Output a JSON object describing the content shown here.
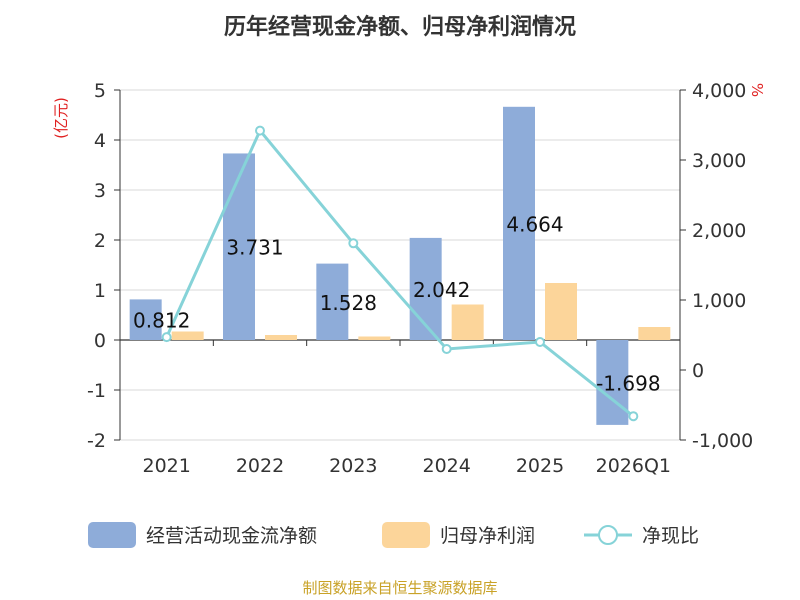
{
  "chart_data": {
    "type": "bar",
    "title": "历年经营现金净额、归母净利润情况",
    "categories": [
      "2021",
      "2022",
      "2023",
      "2024",
      "2025",
      "2026Q1"
    ],
    "left_axis": {
      "unit": "(亿元)",
      "ylim": [
        -2,
        5
      ],
      "ticks": [
        "5",
        "4",
        "3",
        "2",
        "1",
        "0",
        "-1",
        "-2"
      ]
    },
    "right_axis": {
      "unit": "%",
      "ylim": [
        -1000,
        4000
      ],
      "ticks": [
        "4,000",
        "3,000",
        "2,000",
        "1,000",
        "0",
        "-1,000"
      ]
    },
    "series": [
      {
        "name": "经营活动现金流净额",
        "type": "bar",
        "axis": "left",
        "color": "#8eacd9",
        "values": [
          0.812,
          3.731,
          1.528,
          2.042,
          4.664,
          -1.698
        ],
        "labels": [
          "0.812",
          "3.731",
          "1.528",
          "2.042",
          "4.664",
          "-1.698"
        ]
      },
      {
        "name": "归母净利润",
        "type": "bar",
        "axis": "left",
        "color": "#fcd59a",
        "values": [
          0.17,
          0.1,
          0.07,
          0.71,
          1.14,
          0.26
        ]
      },
      {
        "name": "净现比",
        "type": "line",
        "axis": "right",
        "color": "#86d3d8",
        "values": [
          470,
          3420,
          1810,
          300,
          400,
          -660
        ]
      }
    ],
    "grid": true,
    "legend_position": "bottom"
  },
  "footer": {
    "source": "制图数据来自恒生聚源数据库"
  }
}
